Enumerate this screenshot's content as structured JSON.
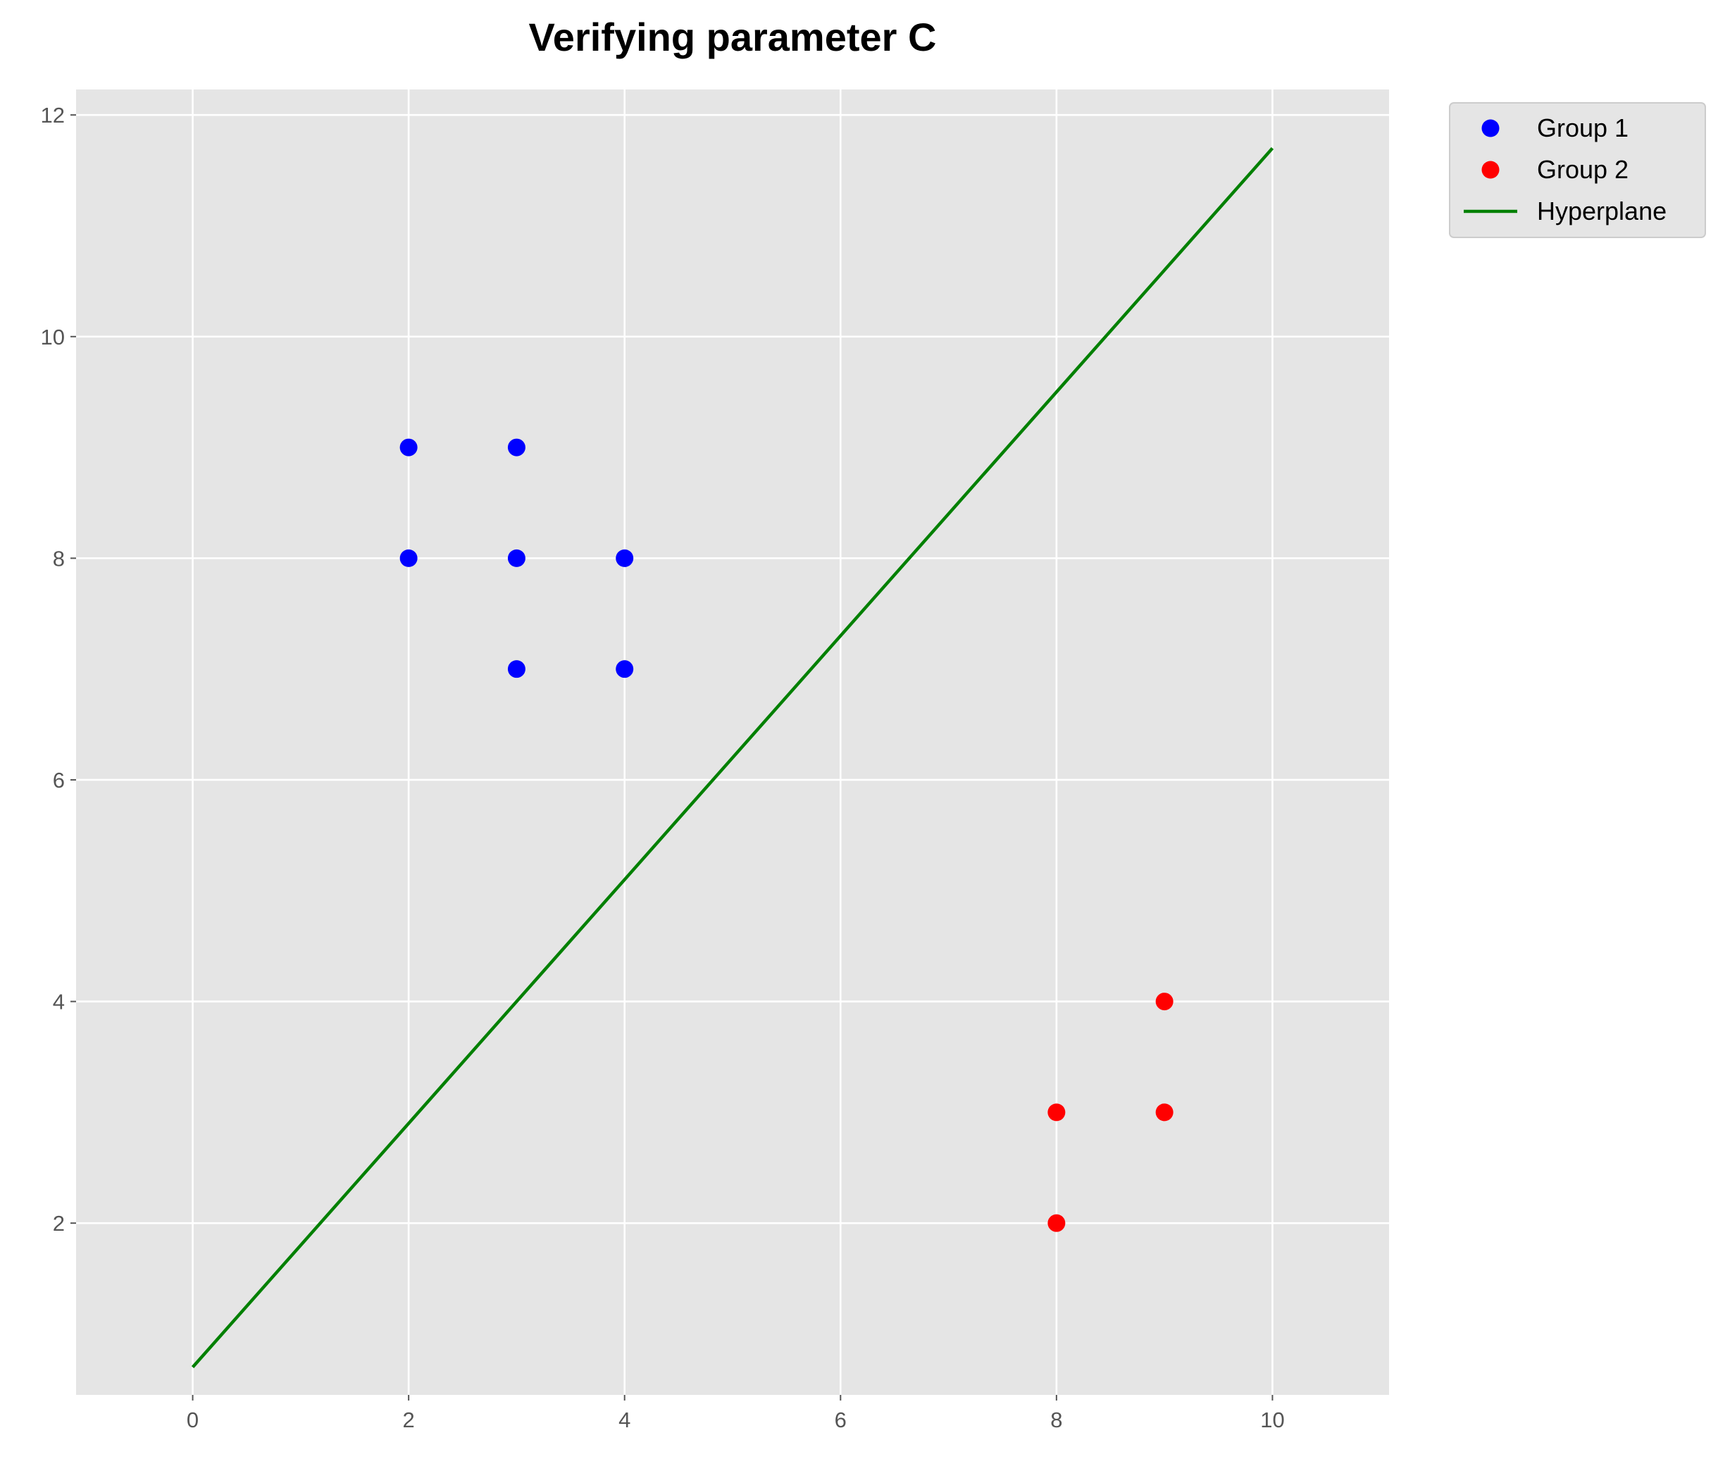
{
  "chart_data": {
    "type": "scatter",
    "title": "Verifying parameter C",
    "xlabel": "",
    "ylabel": "",
    "xlim": [
      -1.08,
      11.08
    ],
    "ylim": [
      0.45,
      12.23
    ],
    "xticks": [
      0,
      2,
      4,
      6,
      8,
      10
    ],
    "yticks": [
      2,
      4,
      6,
      8,
      10,
      12
    ],
    "grid": true,
    "legend_position": "outside top-right",
    "series": [
      {
        "name": "Group 1",
        "kind": "scatter",
        "color": "#0000ff",
        "points": [
          [
            2,
            9
          ],
          [
            3,
            9
          ],
          [
            2,
            8
          ],
          [
            3,
            8
          ],
          [
            4,
            8
          ],
          [
            3,
            7
          ],
          [
            4,
            7
          ]
        ]
      },
      {
        "name": "Group 2",
        "kind": "scatter",
        "color": "#ff0000",
        "points": [
          [
            9,
            4
          ],
          [
            8,
            3
          ],
          [
            9,
            3
          ],
          [
            8,
            2
          ]
        ]
      },
      {
        "name": "Hyperplane",
        "kind": "line",
        "color": "#008000",
        "points": [
          [
            0,
            0.7
          ],
          [
            10,
            11.7
          ]
        ]
      }
    ]
  },
  "colors": {
    "plot_background": "#e5e5e5",
    "grid": "#ffffff",
    "tick_text": "#555555",
    "legend_background": "#e5e5e5",
    "legend_border": "#cccccc"
  }
}
